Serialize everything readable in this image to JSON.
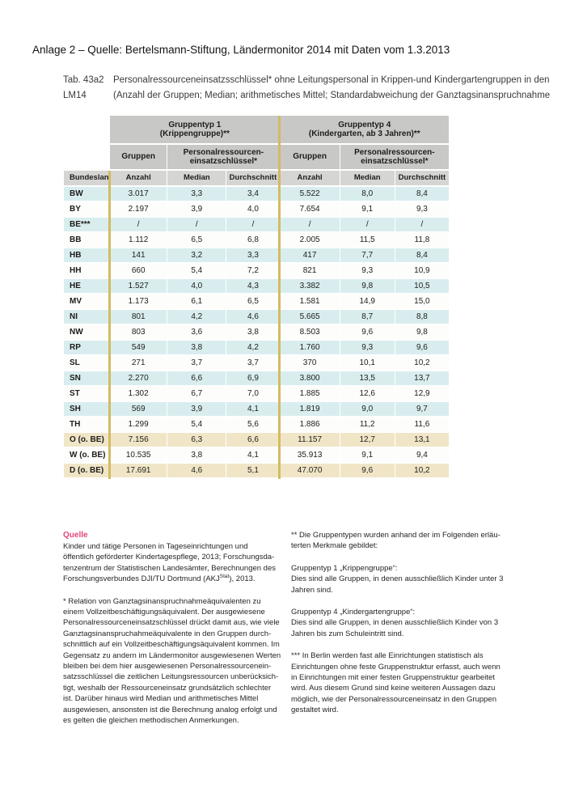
{
  "annotation": "Anlage 2 – Quelle: Bertelsmann-Stiftung, Ländermonitor 2014 mit Daten vom 1.3.2013",
  "caption": {
    "ref_line1": "Tab. 43a2",
    "ref_line2": "LM14",
    "title_line1": "Personalressourceneinsatzsschlüssel* ohne Leitungspersonal in Krippen-und Kindergartengruppen in den",
    "title_line2": "(Anzahl der Gruppen; Median; arithmetisches Mittel; Standardabweichung der Ganztagsinanspruchnahme"
  },
  "table": {
    "group1_header": "Gruppentyp 1\n(Krippengruppe)**",
    "group4_header": "Gruppentyp 4\n(Kindergarten, ab 3 Jahren)**",
    "gruppen_label": "Gruppen",
    "resource_label": "Personalressourcen-\neinsatzschlüssel*",
    "col_bundesland": "Bundesland",
    "col_anzahl": "Anzahl",
    "col_median": "Median",
    "col_durchschnitt": "Durchschnitt",
    "rows": [
      {
        "style": "blue",
        "cells": [
          "BW",
          "3.017",
          "3,3",
          "3,4",
          "5.522",
          "8,0",
          "8,4"
        ]
      },
      {
        "style": "white",
        "cells": [
          "BY",
          "2.197",
          "3,9",
          "4,0",
          "7.654",
          "9,1",
          "9,3"
        ]
      },
      {
        "style": "blue",
        "cells": [
          "BE***",
          "/",
          "/",
          "/",
          "/",
          "/",
          "/"
        ]
      },
      {
        "style": "white",
        "cells": [
          "BB",
          "1.112",
          "6,5",
          "6,8",
          "2.005",
          "11,5",
          "11,8"
        ]
      },
      {
        "style": "blue",
        "cells": [
          "HB",
          "141",
          "3,2",
          "3,3",
          "417",
          "7,7",
          "8,4"
        ]
      },
      {
        "style": "white",
        "cells": [
          "HH",
          "660",
          "5,4",
          "7,2",
          "821",
          "9,3",
          "10,9"
        ]
      },
      {
        "style": "blue",
        "cells": [
          "HE",
          "1.527",
          "4,0",
          "4,3",
          "3.382",
          "9,8",
          "10,5"
        ]
      },
      {
        "style": "white",
        "cells": [
          "MV",
          "1.173",
          "6,1",
          "6,5",
          "1.581",
          "14,9",
          "15,0"
        ]
      },
      {
        "style": "blue",
        "cells": [
          "NI",
          "801",
          "4,2",
          "4,6",
          "5.665",
          "8,7",
          "8,8"
        ]
      },
      {
        "style": "white",
        "cells": [
          "NW",
          "803",
          "3,6",
          "3,8",
          "8.503",
          "9,6",
          "9,8"
        ]
      },
      {
        "style": "blue",
        "cells": [
          "RP",
          "549",
          "3,8",
          "4,2",
          "1.760",
          "9,3",
          "9,6"
        ]
      },
      {
        "style": "white",
        "cells": [
          "SL",
          "271",
          "3,7",
          "3,7",
          "370",
          "10,1",
          "10,2"
        ]
      },
      {
        "style": "blue",
        "cells": [
          "SN",
          "2.270",
          "6,6",
          "6,9",
          "3.800",
          "13,5",
          "13,7"
        ]
      },
      {
        "style": "white",
        "cells": [
          "ST",
          "1.302",
          "6,7",
          "7,0",
          "1.885",
          "12,6",
          "12,9"
        ]
      },
      {
        "style": "blue",
        "cells": [
          "SH",
          "569",
          "3,9",
          "4,1",
          "1.819",
          "9,0",
          "9,7"
        ]
      },
      {
        "style": "white",
        "cells": [
          "TH",
          "1.299",
          "5,4",
          "5,6",
          "1.886",
          "11,2",
          "11,6"
        ]
      },
      {
        "style": "tan",
        "cells": [
          "O (o. BE)",
          "7.156",
          "6,3",
          "6,6",
          "11.157",
          "12,7",
          "13,1"
        ]
      },
      {
        "style": "white",
        "cells": [
          "W (o. BE)",
          "10.535",
          "3,8",
          "4,1",
          "35.913",
          "9,1",
          "9,4"
        ]
      },
      {
        "style": "tan",
        "cells": [
          "D (o. BE)",
          "17.691",
          "4,6",
          "5,1",
          "47.070",
          "9,6",
          "10,2"
        ]
      }
    ]
  },
  "footnotes": {
    "source_heading": "Quelle",
    "source_before": "Kinder und tätige Personen in Tageseinrichtungen und\nöffentlich geförderter Kindertagespflege, 2013; Forschungsda-\ntenzentrum der Statistischen Landesämter, Berechnungen des\nForschungsverbundes DJI/TU Dortmund (AKJ",
    "source_sup": "Stat",
    "source_after": "), 2013.",
    "star1": "* Relation von Ganztagsinanspruchnahmeäquivalenten zu\neinem Vollzeitbeschäftigungsäquivalent. Der ausgewiesene\nPersonalressourceneinsatzschlüssel drückt damit aus, wie viele\nGanztagsinanspruchahmeäquivalente in den Gruppen durch-\nschnittlich auf ein Vollzeitbeschäftigungsäquivalent kommen. Im\nGegensatz zu andern im Ländermonitor ausgewiesenen Werten\nbleiben bei dem hier ausgewiesenen Personalressourcenein-\nsatzsschlüssel die zeitlichen Leitungsressourcen unberücksich-\ntigt, weshalb der Ressourceneinsatz grundsätzlich schlechter\nist. Darüber hinaus wird Median und arithmetisches Mittel\nausgewiesen, ansonsten ist die Berechnung analog erfolgt und\nes gelten die gleichen methodischen Anmerkungen.",
    "star2": "** Die Gruppentypen wurden anhand der im Folgenden erläu-\nterten Merkmale gebildet:",
    "group1_def": "Gruppentyp 1 „Krippengruppe“:\nDies sind alle Gruppen, in denen ausschließlich Kinder unter 3\nJahren sind.",
    "group4_def": "Gruppentyp 4 „Kindergartengruppe“:\nDies sind alle Gruppen, in denen ausschließlich Kinder von 3\nJahren bis zum Schuleintritt sind.",
    "star3": "*** In Berlin werden fast alle Einrichtungen statistisch als\nEinrichtungen ohne feste Gruppenstruktur erfasst, auch wenn\nin Einrichtungen mit einer festen Gruppenstruktur gearbeitet\nwird. Aus diesem Grund sind keine weiteren Aussagen dazu\nmöglich, wie der Personalressourceneinsatz in den Gruppen\ngestaltet wird."
  },
  "colors": {
    "header_gray": "#c8c8c6",
    "subheader_gray": "#d5d5d3",
    "row_blue": "#d9edee",
    "row_tan": "#f0e6c7",
    "divider_gold": "#d3bb62",
    "accent_pink": "#e0457c"
  }
}
